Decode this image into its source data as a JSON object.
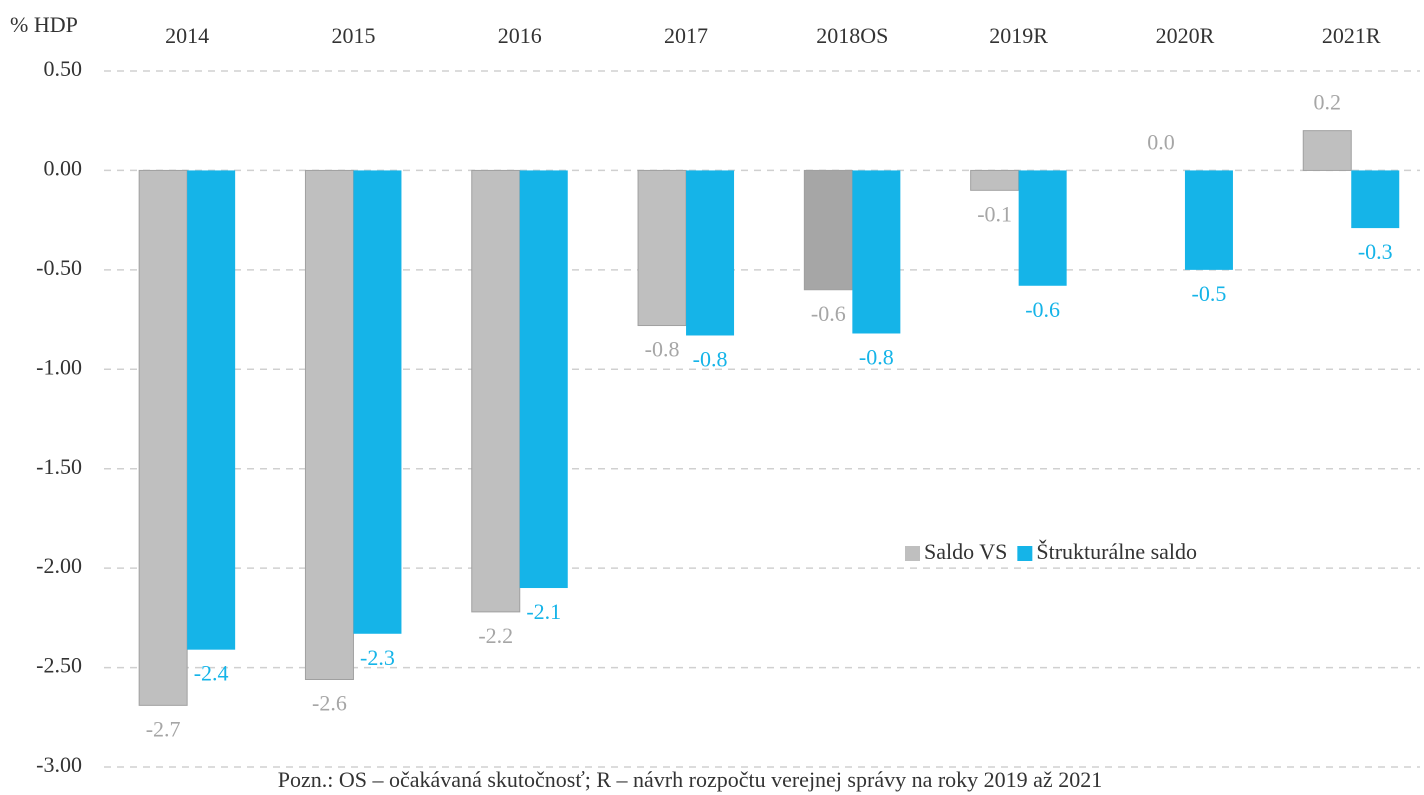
{
  "chart_data": {
    "type": "bar",
    "y_unit": "% HDP",
    "categories": [
      "2014",
      "2015",
      "2016",
      "2017",
      "2018OS",
      "2019R",
      "2020R",
      "2021R"
    ],
    "series": [
      {
        "name": "Saldo VS",
        "color": "#bfbfbf",
        "colors": [
          "#bfbfbf",
          "#bfbfbf",
          "#bfbfbf",
          "#bfbfbf",
          "#a6a6a6",
          "#bfbfbf",
          "#bfbfbf",
          "#bfbfbf"
        ],
        "label_color": "#a6a6a6",
        "values": [
          -2.69,
          -2.56,
          -2.22,
          -0.78,
          -0.6,
          -0.1,
          0,
          0.2
        ],
        "value_labels": [
          "-2.7",
          "-2.6",
          "-2.2",
          "-0.8",
          "-0.6",
          "-0.1",
          "0.0",
          "0.2"
        ]
      },
      {
        "name": "Štrukturálne saldo",
        "color": "#15b4e8",
        "label_color": "#15b4e8",
        "values": [
          -2.41,
          -2.33,
          -2.1,
          -0.83,
          -0.82,
          -0.58,
          -0.5,
          -0.29
        ],
        "value_labels": [
          "-2.4",
          "-2.3",
          "-2.1",
          "-0.8",
          "-0.8",
          "-0.6",
          "-0.5",
          "-0.3"
        ]
      }
    ],
    "ylim": [
      -3,
      0.5
    ],
    "yticks": [
      {
        "value": 0.5,
        "label": "0.50"
      },
      {
        "value": 0,
        "label": "0.00"
      },
      {
        "value": -0.5,
        "label": "-0.50"
      },
      {
        "value": -1,
        "label": "-1.00"
      },
      {
        "value": -1.5,
        "label": "-1.50"
      },
      {
        "value": -2,
        "label": "-2.00"
      },
      {
        "value": -2.5,
        "label": "-2.50"
      },
      {
        "value": -3,
        "label": "-3.00"
      }
    ],
    "grid": true,
    "note": "Pozn.: OS – očakávaná skutočnosť; R – návrh rozpočtu verejnej správy na roky 2019 až 2021"
  }
}
